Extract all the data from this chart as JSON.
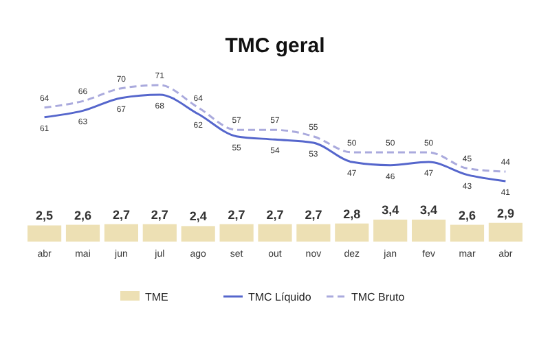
{
  "chart_data": [
    {
      "type": "line",
      "title": "TMC geral",
      "categories": [
        null,
        null,
        null,
        null,
        null,
        null,
        null,
        null,
        null,
        null,
        null,
        null,
        null
      ],
      "tick_labels": false,
      "marker": "none",
      "legend": "bottom",
      "series": [
        {
          "name": "TMC Líquido",
          "color": "#5566cc",
          "line_style": "solid",
          "values": [
            61,
            63,
            67,
            68,
            62,
            55,
            54,
            53,
            47,
            46,
            47,
            43,
            41
          ],
          "value_labels": [
            "61",
            "63",
            "67",
            "68",
            "62",
            "55",
            "54",
            "53",
            "47",
            "46",
            "47",
            "43",
            "41"
          ]
        },
        {
          "name": "TMC Bruto",
          "color": "#aaaadd",
          "line_style": "dashed",
          "values": [
            64,
            66,
            70,
            71,
            64,
            57,
            57,
            55,
            50,
            50,
            50,
            45,
            44
          ],
          "value_labels": [
            "64",
            "66",
            "70",
            "71",
            "64",
            "57",
            "57",
            "55",
            "50",
            "50",
            "50",
            "45",
            "44"
          ]
        }
      ]
    },
    {
      "type": "bar",
      "categories": [
        "abr",
        "mai",
        "jun",
        "jul",
        "ago",
        "set",
        "out",
        "nov",
        "dez",
        "jan",
        "fev",
        "mar",
        "abr"
      ],
      "tick_labels": "x",
      "legend": "bottom",
      "series": [
        {
          "name": "TME",
          "color": "#ede0b4",
          "values": [
            2.5,
            2.6,
            2.7,
            2.7,
            2.4,
            2.7,
            2.7,
            2.7,
            2.8,
            3.4,
            3.4,
            2.6,
            2.9
          ],
          "value_labels": [
            "2,5",
            "2,6",
            "2,7",
            "2,7",
            "2,4",
            "2,7",
            "2,7",
            "2,7",
            "2,8",
            "3,4",
            "3,4",
            "2,6",
            "2,9"
          ]
        }
      ]
    }
  ]
}
